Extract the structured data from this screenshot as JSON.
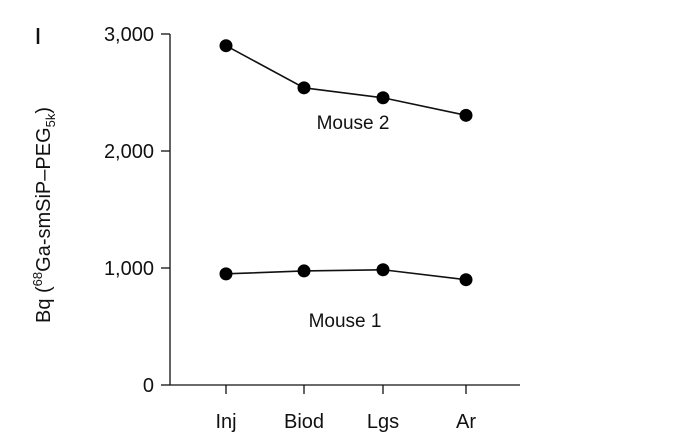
{
  "chart_data": {
    "type": "line",
    "categories": [
      "Inj",
      "Biod",
      "Lgs",
      "Ar"
    ],
    "series": [
      {
        "name": "Mouse 2",
        "values": [
          2900,
          2540,
          2455,
          2305
        ]
      },
      {
        "name": "Mouse 1",
        "values": [
          950,
          975,
          985,
          900
        ]
      }
    ],
    "ylabel": {
      "prefix": "Bq (",
      "sup": "68",
      "mid": "Ga-smSiP–PEG",
      "sub": "5k",
      "suffix": ")"
    },
    "ylim": [
      0,
      3000
    ],
    "yticks": [
      {
        "value": 0,
        "label": "0"
      },
      {
        "value": 1000,
        "label": "1,000"
      },
      {
        "value": 2000,
        "label": "2,000"
      },
      {
        "value": 3000,
        "label": "3,000"
      }
    ],
    "grid": false,
    "legend": "none",
    "colors": {
      "line": "#111111",
      "marker": "#000000"
    }
  }
}
